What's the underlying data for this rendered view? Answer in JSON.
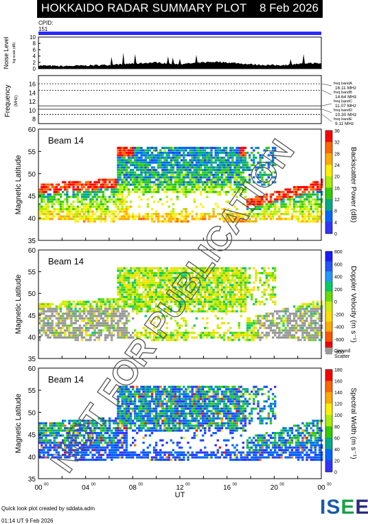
{
  "header": {
    "title": "HOKKAIDO RADAR SUMMARY PLOT",
    "date": "8 Feb 2026"
  },
  "cpid": {
    "label": "CPID:",
    "value": "151",
    "color": "#2a2aff"
  },
  "footer": {
    "credit": "Quick look plot created by sddata.adm",
    "timestamp": "01:14 UT  9 Feb 2026"
  },
  "logo": {
    "part1": "IS",
    "part2": "E",
    "part3": "E"
  },
  "watermark": "NOT FOR PUBLICATION",
  "chart_data": [
    {
      "type": "area",
      "ylabel": "Noise Level",
      "ylabel_sub": "log scale (dB)",
      "ylim": [
        0,
        10
      ],
      "yticks": [
        "10",
        "8",
        "6",
        "4",
        "2",
        "0"
      ],
      "x": [
        0,
        1,
        2,
        3,
        4,
        5,
        6,
        7,
        8,
        9,
        10,
        11,
        12,
        13,
        14,
        15,
        16,
        17,
        18,
        19,
        20,
        21,
        22,
        23,
        24
      ],
      "values": [
        1.0,
        0.9,
        0.8,
        0.9,
        1.0,
        1.1,
        1.2,
        1.4,
        1.6,
        1.8,
        2.0,
        1.6,
        1.5,
        1.7,
        2.0,
        2.2,
        2.0,
        1.7,
        1.4,
        1.2,
        1.1,
        1.2,
        1.5,
        1.8,
        1.6
      ]
    },
    {
      "type": "line",
      "ylabel": "Frequency",
      "ylabel_sub": "(MHz)",
      "ylim": [
        7,
        18
      ],
      "yticks": [
        "16",
        "14",
        "12",
        "10",
        "8"
      ],
      "bands": [
        {
          "label": "freq bandA",
          "value_text": "16.11 MHz",
          "mhz": 16.11,
          "style": "dashed"
        },
        {
          "label": "freq bandB",
          "value_text": "14.64 MHz",
          "mhz": 14.64,
          "style": "dashed"
        },
        {
          "label": "freq bandC",
          "value_text": "11.07 MHz",
          "mhz": 11.07,
          "style": "solid"
        },
        {
          "label": "freq bandD",
          "value_text": "10.30 MHz",
          "mhz": 10.3,
          "style": "solid"
        },
        {
          "label": "freq bandE",
          "value_text": "9.11 MHz",
          "mhz": 9.11,
          "style": "dashed"
        }
      ]
    },
    {
      "type": "heatmap",
      "beam": "Beam 14",
      "ylabel": "Magnetic Latitude",
      "ylim": [
        35,
        60
      ],
      "yticks": [
        "60",
        "55",
        "50",
        "45",
        "40",
        "35"
      ],
      "cbar_title": "Backscatter Power (dB)",
      "cbar_ticks": [
        "36",
        "32",
        "28",
        "24",
        "20",
        "16",
        "12",
        "8",
        "4",
        "0"
      ],
      "cbar_colors": [
        "#ff0000",
        "#ff6600",
        "#ffaa00",
        "#ffee00",
        "#aaee00",
        "#33cc00",
        "#00aa88",
        "#0066ff",
        "#3333ff"
      ]
    },
    {
      "type": "heatmap",
      "beam": "Beam 14",
      "ylabel": "Magnetic Latitude",
      "ylim": [
        35,
        60
      ],
      "yticks": [
        "60",
        "55",
        "50",
        "45",
        "40",
        "35"
      ],
      "cbar_title": "Doppler Velocity (m s⁻¹)",
      "cbar_ticks": [
        "800",
        "600",
        "400",
        "200",
        "0",
        "-200",
        "-400",
        "-600",
        "-800"
      ],
      "cbar_colors": [
        "#1a1aff",
        "#2255ff",
        "#2299ff",
        "#00cc66",
        "#66dd00",
        "#ccee00",
        "#ffdd00",
        "#ffaa00",
        "#ff5500",
        "#ee0000"
      ],
      "ground_scatter_label1": "Ground",
      "ground_scatter_label2": "Scatter",
      "ground_scatter_color": "#999999"
    },
    {
      "type": "heatmap",
      "beam": "Beam 14",
      "ylabel": "Magnetic Latitude",
      "ylim": [
        35,
        60
      ],
      "yticks": [
        "60",
        "55",
        "50",
        "45",
        "40",
        "35"
      ],
      "cbar_title": "Spectral Width (m s⁻¹)",
      "cbar_ticks": [
        "180",
        "160",
        "140",
        "120",
        "100",
        "80",
        "60",
        "40",
        "20",
        "0"
      ],
      "cbar_colors": [
        "#ff0000",
        "#ff6600",
        "#ffaa00",
        "#ffee00",
        "#aaee00",
        "#33cc00",
        "#00aa88",
        "#0066ff",
        "#3333ff"
      ]
    }
  ],
  "xaxis": {
    "label": "UT",
    "ticks": [
      "00",
      "04",
      "08",
      "12",
      "16",
      "20",
      "00"
    ],
    "tick_sup": "00",
    "xlim": [
      0,
      24
    ]
  }
}
